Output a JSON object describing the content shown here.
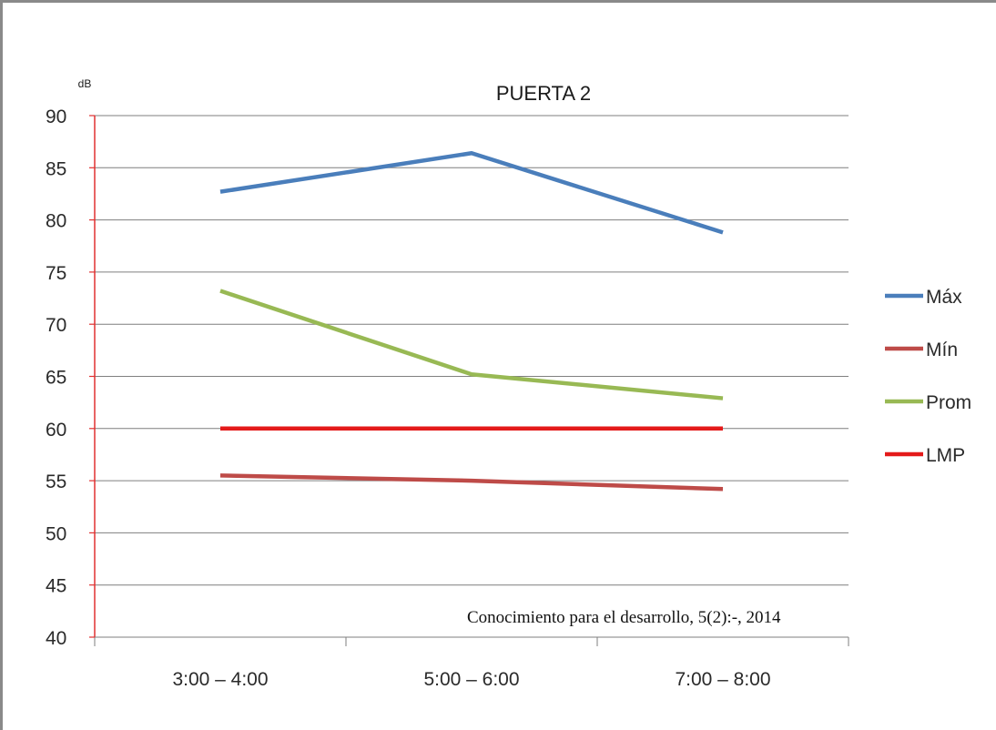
{
  "chart_data": {
    "type": "line",
    "title": "PUERTA 2",
    "ylabel": "dB",
    "xlabel": "",
    "categories": [
      "3:00 – 4:00",
      "5:00 – 6:00",
      "7:00 – 8:00"
    ],
    "ylim": [
      40,
      90
    ],
    "yticks": [
      90,
      85,
      80,
      75,
      70,
      65,
      60,
      55,
      50,
      45,
      40
    ],
    "grid": true,
    "legend_position": "right",
    "series": [
      {
        "name": "Máx",
        "color": "#4a7ebb",
        "values": [
          82.7,
          86.4,
          78.8
        ]
      },
      {
        "name": "Mín",
        "color": "#be4b48",
        "values": [
          55.5,
          55.0,
          54.2
        ]
      },
      {
        "name": "Prom",
        "color": "#98b954",
        "values": [
          73.2,
          65.2,
          62.9
        ]
      },
      {
        "name": "LMP",
        "color": "#e41a1a",
        "values": [
          60,
          60,
          60
        ]
      }
    ],
    "annotation": "Conocimiento para el desarrollo, 5(2):-, 2014"
  },
  "colors": {
    "axis": "#e03030",
    "grid": "#7f7f7f",
    "frame": "#8a8a8a"
  }
}
